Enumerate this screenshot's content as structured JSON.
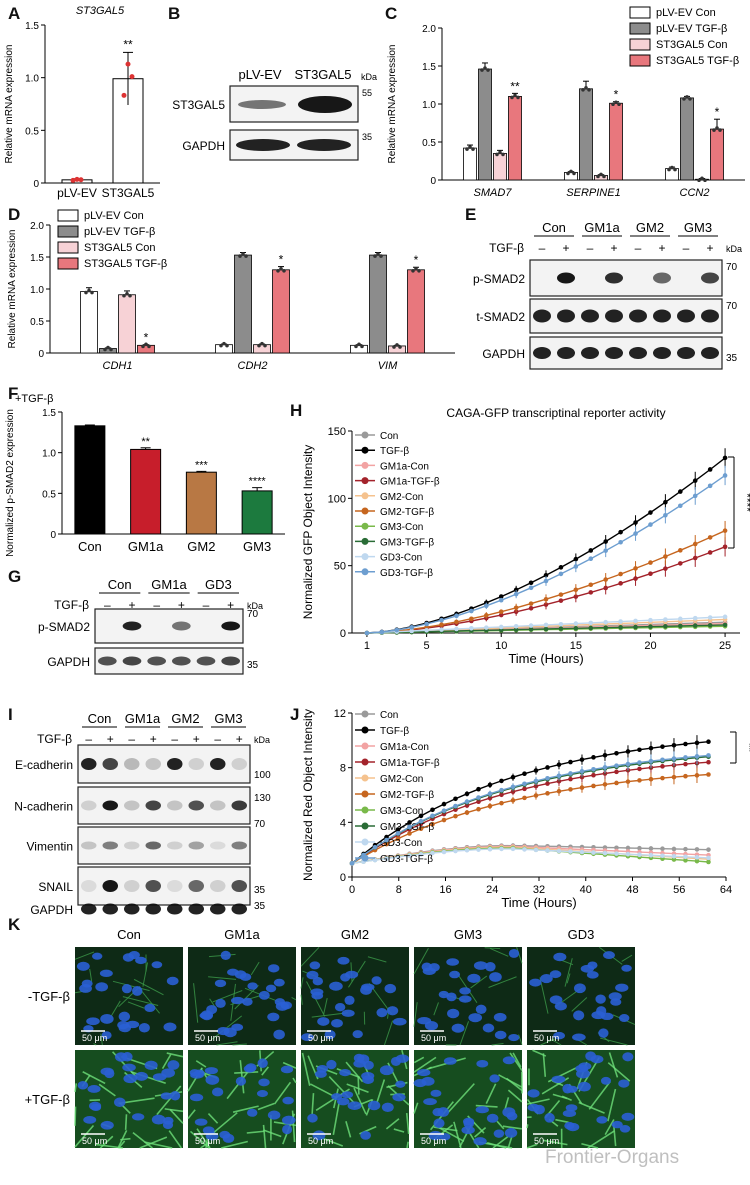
{
  "panel_labels": [
    "A",
    "B",
    "C",
    "D",
    "E",
    "F",
    "G",
    "H",
    "I",
    "J",
    "K"
  ],
  "chart_data": [
    {
      "id": "A",
      "type": "bar",
      "title": "ST3GAL5",
      "ylabel": "Relative mRNA expression",
      "ylim": [
        0,
        1.5
      ],
      "yticks": [
        0,
        0.5,
        1.0,
        1.5
      ],
      "categories": [
        "pLV-EV",
        "ST3GAL5"
      ],
      "values": [
        0.03,
        0.99
      ],
      "errors": [
        0.01,
        0.25
      ],
      "colors": [
        "#ffffff",
        "#ffffff"
      ],
      "significance": [
        "",
        "**"
      ],
      "point_color": "#d33"
    },
    {
      "id": "C",
      "type": "bar",
      "ylabel": "Relative mRNA expression",
      "ylim": [
        0,
        2.0
      ],
      "yticks": [
        0,
        0.5,
        1.0,
        1.5,
        2.0
      ],
      "categories": [
        "SMAD7",
        "SERPINE1",
        "CCN2"
      ],
      "series": [
        {
          "name": "pLV-EV Con",
          "color": "#ffffff",
          "values": [
            0.42,
            0.1,
            0.15
          ],
          "errors": [
            0.04,
            0.01,
            0.02
          ]
        },
        {
          "name": "pLV-EV TGF-β",
          "color": "#8c8c8c",
          "values": [
            1.46,
            1.2,
            1.08
          ],
          "errors": [
            0.08,
            0.1,
            0.02
          ]
        },
        {
          "name": "ST3GAL5 Con",
          "color": "#f7d2d6",
          "values": [
            0.35,
            0.06,
            0.01
          ],
          "errors": [
            0.04,
            0.01,
            0.01
          ]
        },
        {
          "name": "ST3GAL5 TGF-β",
          "color": "#e8777d",
          "values": [
            1.1,
            1.01,
            0.67
          ],
          "errors": [
            0.04,
            0.02,
            0.13
          ]
        }
      ],
      "significance": [
        "**",
        "*",
        "*"
      ]
    },
    {
      "id": "D",
      "type": "bar",
      "ylabel": "Relative mRNA expression",
      "ylim": [
        0,
        2.0
      ],
      "yticks": [
        0,
        0.5,
        1.0,
        1.5,
        2.0
      ],
      "categories": [
        "CDH1",
        "CDH2",
        "VIM"
      ],
      "series": [
        {
          "name": "pLV-EV Con",
          "color": "#ffffff",
          "values": [
            0.96,
            0.13,
            0.12
          ],
          "errors": [
            0.06,
            0.01,
            0.01
          ]
        },
        {
          "name": "pLV-EV TGF-β",
          "color": "#8c8c8c",
          "values": [
            0.07,
            1.53,
            1.53
          ],
          "errors": [
            0.01,
            0.04,
            0.04
          ]
        },
        {
          "name": "ST3GAL5 Con",
          "color": "#f7d2d6",
          "values": [
            0.91,
            0.13,
            0.11
          ],
          "errors": [
            0.06,
            0.01,
            0.01
          ]
        },
        {
          "name": "ST3GAL5 TGF-β",
          "color": "#e8777d",
          "values": [
            0.12,
            1.3,
            1.3
          ],
          "errors": [
            0.01,
            0.05,
            0.04
          ]
        }
      ],
      "significance": [
        "*",
        "*",
        "*"
      ]
    },
    {
      "id": "F",
      "type": "bar",
      "title": "+TGF-β",
      "ylabel": "Normalized p-SMAD2 expression",
      "ylim": [
        0,
        1.5
      ],
      "yticks": [
        0,
        0.5,
        1.0,
        1.5
      ],
      "categories": [
        "Con",
        "GM1a",
        "GM2",
        "GM3"
      ],
      "values": [
        1.33,
        1.04,
        0.76,
        0.53
      ],
      "errors": [
        0.01,
        0.02,
        0.01,
        0.04
      ],
      "colors": [
        "#000000",
        "#c71e2b",
        "#b87844",
        "#1c7a3e"
      ],
      "significance": [
        "",
        "**",
        "***",
        "****"
      ]
    },
    {
      "id": "H",
      "type": "line",
      "title": "CAGA-GFP transcriptinal reporter activity",
      "xlabel": "Time (Hours)",
      "ylabel": "Normalized GFP Object Intensity",
      "xlim": [
        0,
        26
      ],
      "ylim": [
        0,
        150
      ],
      "xticks": [
        1,
        5,
        10,
        15,
        20,
        25
      ],
      "yticks": [
        0,
        50,
        100,
        150
      ],
      "significance": "****",
      "series": [
        {
          "name": "Con",
          "color": "#9a9a9a",
          "end": 8
        },
        {
          "name": "TGF-β",
          "color": "#000000",
          "end": 130
        },
        {
          "name": "GM1a-Con",
          "color": "#f2a3a3",
          "end": 7
        },
        {
          "name": "GM1a-TGF-β",
          "color": "#a3232b",
          "end": 64
        },
        {
          "name": "GM2-Con",
          "color": "#f5c28e",
          "end": 10
        },
        {
          "name": "GM2-TGF-β",
          "color": "#c6661f",
          "end": 76
        },
        {
          "name": "GM3-Con",
          "color": "#79b94a",
          "end": 5
        },
        {
          "name": "GM3-TGF-β",
          "color": "#2a6c36",
          "end": 6
        },
        {
          "name": "GD3-Con",
          "color": "#bfd8ef",
          "end": 12
        },
        {
          "name": "GD3-TGF-β",
          "color": "#6d9ed0",
          "end": 117
        }
      ]
    },
    {
      "id": "J",
      "type": "line",
      "xlabel": "Time (Hours)",
      "ylabel": "Normalized Red Object Intensity",
      "xlim": [
        0,
        64
      ],
      "ylim": [
        0,
        12
      ],
      "xticks": [
        0,
        8,
        16,
        24,
        32,
        40,
        48,
        56,
        64
      ],
      "yticks": [
        0,
        4,
        8,
        12
      ],
      "significance": "**",
      "series": [
        {
          "name": "Con",
          "color": "#9a9a9a",
          "end": 2.0
        },
        {
          "name": "TGF-β",
          "color": "#000000",
          "end": 9.9
        },
        {
          "name": "GM1a-Con",
          "color": "#f2a3a3",
          "end": 1.6
        },
        {
          "name": "GM1a-TGF-β",
          "color": "#a3232b",
          "end": 8.4
        },
        {
          "name": "GM2-Con",
          "color": "#f5c28e",
          "end": 1.3
        },
        {
          "name": "GM2-TGF-β",
          "color": "#c6661f",
          "end": 7.5
        },
        {
          "name": "GM3-Con",
          "color": "#79b94a",
          "end": 1.1
        },
        {
          "name": "GM3-TGF-β",
          "color": "#2a6c36",
          "end": 8.8
        },
        {
          "name": "GD3-Con",
          "color": "#bfd8ef",
          "end": 1.4
        },
        {
          "name": "GD3-TGF-β",
          "color": "#6d9ed0",
          "end": 8.9
        }
      ]
    }
  ],
  "blots": {
    "B": {
      "columns": [
        "pLV-EV",
        "ST3GAL5"
      ],
      "kda_label": "kDa",
      "rows": [
        {
          "name": "ST3GAL5",
          "marker": "55"
        },
        {
          "name": "GAPDH",
          "marker": "35"
        }
      ]
    },
    "E": {
      "groups": [
        "Con",
        "GM1a",
        "GM2",
        "GM3"
      ],
      "treatment_label": "TGF-β",
      "lane_signs": [
        "–",
        "+"
      ],
      "kda_label": "kDa",
      "rows": [
        {
          "name": "p-SMAD2",
          "marker": "70"
        },
        {
          "name": "t-SMAD2",
          "marker": "70"
        },
        {
          "name": "GAPDH",
          "marker": "35"
        }
      ]
    },
    "G": {
      "groups": [
        "Con",
        "GM1a",
        "GD3"
      ],
      "treatment_label": "TGF-β",
      "lane_signs": [
        "–",
        "+"
      ],
      "kda_label": "kDa",
      "rows": [
        {
          "name": "p-SMAD2",
          "marker": "70"
        },
        {
          "name": "GAPDH",
          "marker": "35"
        }
      ]
    },
    "I": {
      "groups": [
        "Con",
        "GM1a",
        "GM2",
        "GM3"
      ],
      "treatment_label": "TGF-β",
      "lane_signs": [
        "–",
        "+"
      ],
      "kda_label": "kDa",
      "rows": [
        {
          "name": "E-cadherin",
          "marker": "100"
        },
        {
          "name": "N-cadherin",
          "marker": "130"
        },
        {
          "name": "Vimentin",
          "marker": "70"
        },
        {
          "name": "SNAIL",
          "marker": "35"
        },
        {
          "name": "GAPDH",
          "marker": "35"
        }
      ]
    }
  },
  "microscopy": {
    "columns": [
      "Con",
      "GM1a",
      "GM2",
      "GM3",
      "GD3"
    ],
    "rows": [
      "-TGF-β",
      "+TGF-β"
    ],
    "scale_bar": "50 μm"
  },
  "watermark": "Frontier-Organs"
}
